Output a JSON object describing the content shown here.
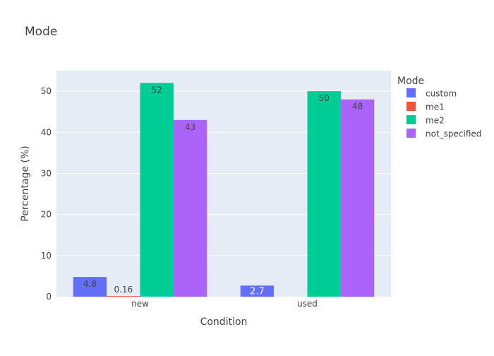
{
  "chart_data": {
    "type": "bar",
    "title": "Mode",
    "xlabel": "Condition",
    "ylabel": "Percentage (%)",
    "categories": [
      "new",
      "used"
    ],
    "ylim": [
      0,
      55
    ],
    "yticks": [
      0,
      10,
      20,
      30,
      40,
      50
    ],
    "grid": true,
    "legend_title": "Mode",
    "legend_position": "right",
    "series": [
      {
        "name": "custom",
        "color": "#636efa",
        "values": [
          4.8,
          2.7
        ],
        "labels": [
          "4.8",
          "2.7"
        ]
      },
      {
        "name": "me1",
        "color": "#ef553b",
        "values": [
          0.16,
          0
        ],
        "labels": [
          "0.16",
          ""
        ]
      },
      {
        "name": "me2",
        "color": "#00cc96",
        "values": [
          52,
          50
        ],
        "labels": [
          "52",
          "50"
        ]
      },
      {
        "name": "not_specified",
        "color": "#ab63fa",
        "values": [
          43,
          48
        ],
        "labels": [
          "43",
          "48"
        ]
      }
    ],
    "colors": {
      "plot_bg": "#e5ecf6",
      "grid": "#ffffff",
      "text": "#444444",
      "title": "#444444"
    }
  }
}
